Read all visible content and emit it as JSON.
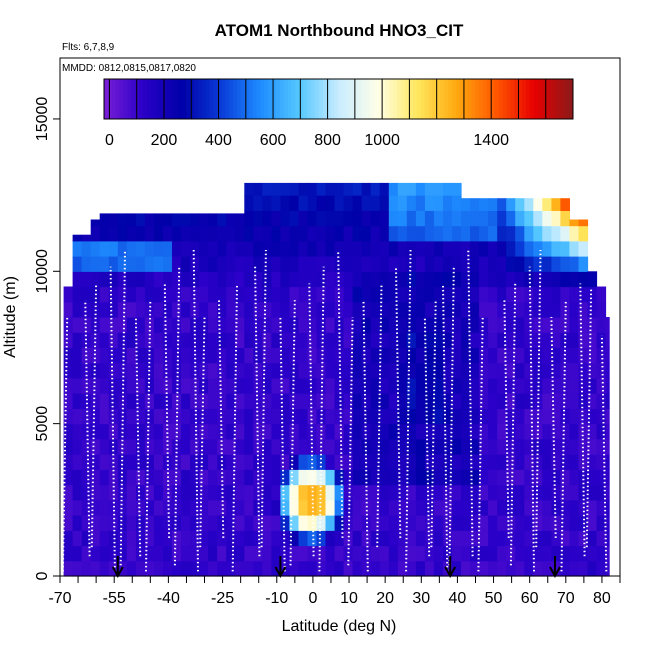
{
  "chart_data": {
    "type": "heatmap",
    "title": "ATOM1 Northbound HNO3_CIT",
    "notes": [
      "Flts: 6,7,8,9",
      "MMDD: 0812,0815,0817,0820"
    ],
    "xlabel": "Latitude (deg N)",
    "ylabel": "Altitude (m)",
    "xlim": [
      -70,
      85
    ],
    "ylim": [
      0,
      17000
    ],
    "xticks": [
      "-70",
      "-55",
      "-40",
      "-25",
      "-10",
      "0",
      "10",
      "20",
      "30",
      "40",
      "50",
      "60",
      "70",
      "80"
    ],
    "yticks": [
      "0",
      "5000",
      "10000",
      "15000"
    ],
    "colorbar": {
      "range": [
        -20,
        1700
      ],
      "ticks": [
        "0",
        "200",
        "400",
        "600",
        "800",
        "1000",
        "1400"
      ],
      "colors": [
        "#7a1fd6",
        "#2a00c8",
        "#0000a8",
        "#0a3cd8",
        "#1e8cff",
        "#55c8ff",
        "#c8ecff",
        "#ffffe8",
        "#ffe860",
        "#ffaa10",
        "#ff5a00",
        "#e80000",
        "#8a1a1a"
      ]
    },
    "grid": false,
    "profiles_lat": [
      -68,
      -63,
      -60,
      -56,
      -52,
      -49,
      -45,
      -41,
      -37,
      -33,
      -30,
      -26,
      -21,
      -16,
      -13,
      -9,
      -5,
      -1,
      3,
      7,
      11,
      14,
      19,
      23,
      27,
      31,
      34,
      36,
      39,
      43,
      47,
      53,
      56,
      60,
      63,
      66,
      70,
      74,
      77,
      80
    ],
    "takeoff_lat": [
      -54,
      -9,
      38,
      67
    ]
  }
}
